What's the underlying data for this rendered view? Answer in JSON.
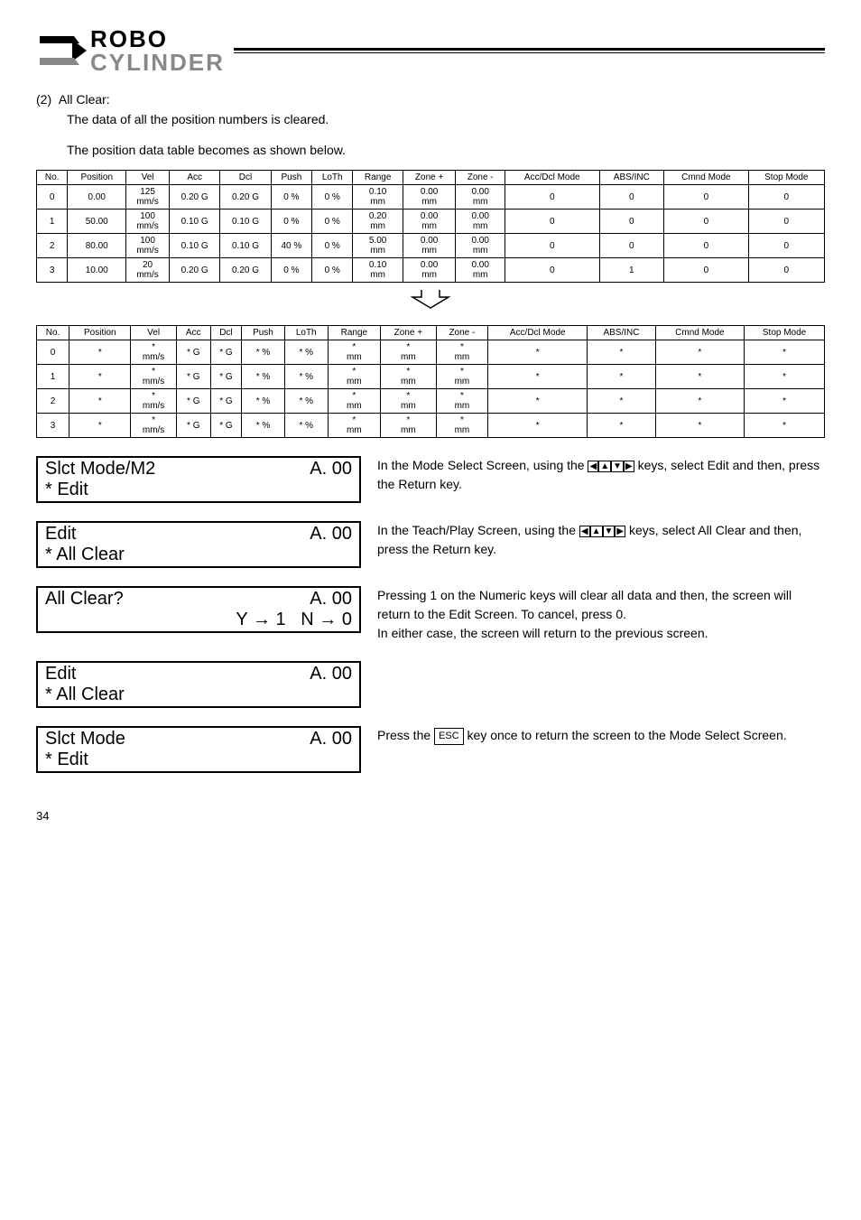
{
  "logo": {
    "line1": "ROBO",
    "line2": "CYLINDER"
  },
  "section": {
    "num": "(2)",
    "title": "All Clear:",
    "line1": "The data of all the position numbers is cleared.",
    "line2": "The position data table becomes as shown below."
  },
  "table1": {
    "headers": [
      "No.",
      "Position",
      "Vel",
      "Acc",
      "Dcl",
      "Push",
      "LoTh",
      "Range",
      "Zone +",
      "Zone -",
      "Acc/Dcl Mode",
      "ABS/INC",
      "Cmnd Mode",
      "Stop Mode"
    ],
    "rows": [
      [
        "0",
        "0.00",
        "125 mm/s",
        "0.20 G",
        "0.20 G",
        "0 %",
        "0 %",
        "0.10 mm",
        "0.00 mm",
        "0.00 mm",
        "0",
        "0",
        "0",
        "0"
      ],
      [
        "1",
        "50.00",
        "100 mm/s",
        "0.10 G",
        "0.10 G",
        "0 %",
        "0 %",
        "0.20 mm",
        "0.00 mm",
        "0.00 mm",
        "0",
        "0",
        "0",
        "0"
      ],
      [
        "2",
        "80.00",
        "100 mm/s",
        "0.10 G",
        "0.10 G",
        "40 %",
        "0 %",
        "5.00 mm",
        "0.00 mm",
        "0.00 mm",
        "0",
        "0",
        "0",
        "0"
      ],
      [
        "3",
        "10.00",
        "20 mm/s",
        "0.20 G",
        "0.20 G",
        "0 %",
        "0 %",
        "0.10 mm",
        "0.00 mm",
        "0.00 mm",
        "0",
        "1",
        "0",
        "0"
      ]
    ]
  },
  "table2": {
    "headers": [
      "No.",
      "Position",
      "Vel",
      "Acc",
      "Dcl",
      "Push",
      "LoTh",
      "Range",
      "Zone +",
      "Zone -",
      "Acc/Dcl Mode",
      "ABS/INC",
      "Cmnd Mode",
      "Stop Mode"
    ],
    "rows": [
      [
        "0",
        "*",
        "* mm/s",
        "* G",
        "* G",
        "* %",
        "* %",
        "* mm",
        "* mm",
        "* mm",
        "*",
        "*",
        "*",
        "*"
      ],
      [
        "1",
        "*",
        "* mm/s",
        "* G",
        "* G",
        "* %",
        "* %",
        "* mm",
        "* mm",
        "* mm",
        "*",
        "*",
        "*",
        "*"
      ],
      [
        "2",
        "*",
        "* mm/s",
        "* G",
        "* G",
        "* %",
        "* %",
        "* mm",
        "* mm",
        "* mm",
        "*",
        "*",
        "*",
        "*"
      ],
      [
        "3",
        "*",
        "* mm/s",
        "* G",
        "* G",
        "* %",
        "* %",
        "* mm",
        "* mm",
        "* mm",
        "*",
        "*",
        "*",
        "*"
      ]
    ]
  },
  "lcd1": {
    "l1a": "Slct Mode/M2",
    "l1b": "A. 00",
    "l2a": "* Edit"
  },
  "desc1a": "In the Mode Select Screen, using the ",
  "desc1b": " keys, select Edit and then, press the Return key.",
  "lcd2": {
    "l1a": "Edit",
    "l1b": "A. 00",
    "l2a": "* All Clear"
  },
  "desc2a": "In the Teach/Play Screen, using the ",
  "desc2b": " keys, select All Clear and then, press the Return key.",
  "lcd3": {
    "l1a": "All Clear?",
    "l1b": "A. 00",
    "l2": "Y → 1   N → 0"
  },
  "desc3": "Pressing 1 on the Numeric keys will clear all data and then, the screen will return to the Edit Screen. To cancel, press 0.\nIn either case, the screen will return to the previous screen.",
  "lcd4": {
    "l1a": "Edit",
    "l1b": "A. 00",
    "l2a": "* All Clear"
  },
  "lcd5": {
    "l1a": "Slct Mode",
    "l1b": "A. 00",
    "l2a": "* Edit"
  },
  "desc5a": "Press the ",
  "desc5b": " key once to return the screen to the Mode Select Screen.",
  "esc": "ESC",
  "arrows": "◀▲▼▶",
  "pagenum": "34"
}
